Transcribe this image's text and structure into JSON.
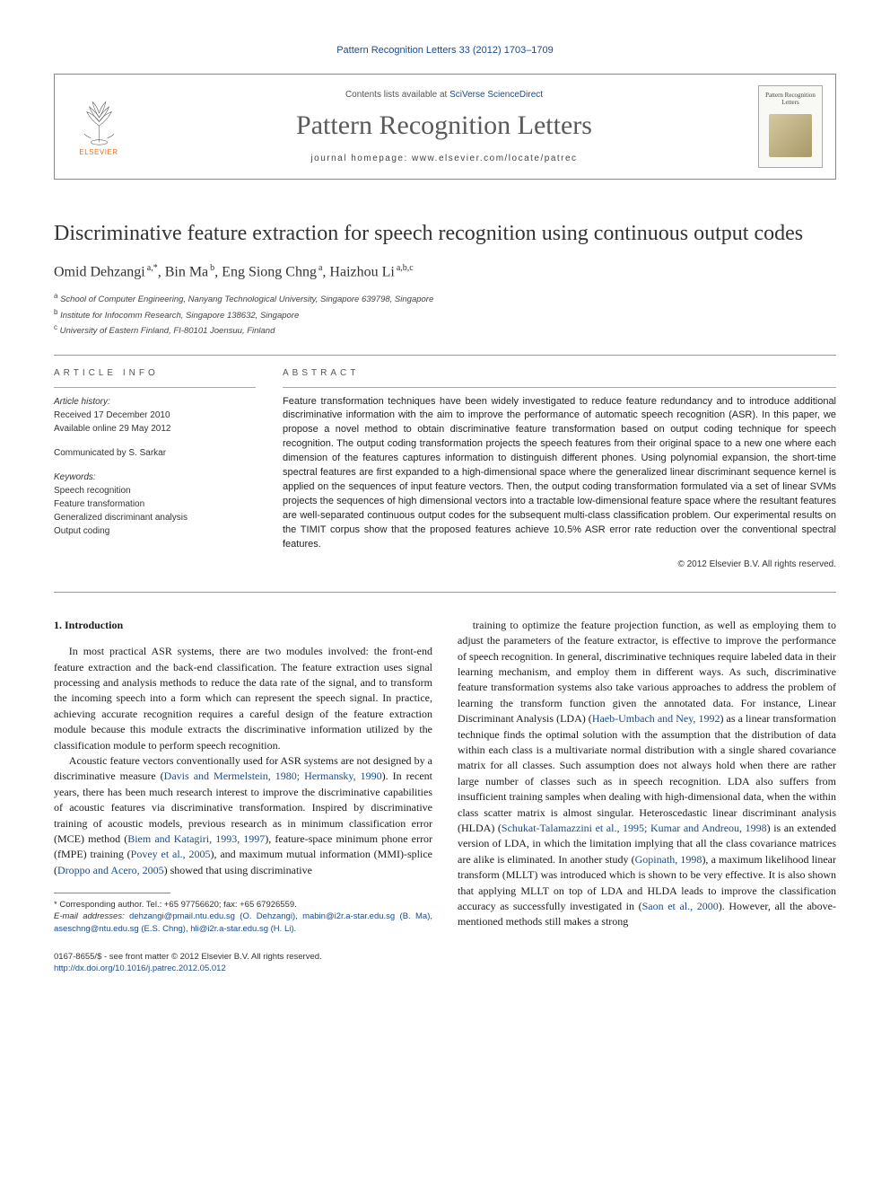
{
  "top_link": "Pattern Recognition Letters 33 (2012) 1703–1709",
  "header": {
    "elsevier_label": "ELSEVIER",
    "contents_prefix": "Contents lists available at ",
    "contents_link": "SciVerse ScienceDirect",
    "journal_name": "Pattern Recognition Letters",
    "homepage": "journal homepage: www.elsevier.com/locate/patrec",
    "cover_title": "Pattern Recognition Letters"
  },
  "title": "Discriminative feature extraction for speech recognition using continuous output codes",
  "authors_html": "Omid Dehzangi",
  "author_list": [
    {
      "name": "Omid Dehzangi",
      "sup": "a,*"
    },
    {
      "name": "Bin Ma",
      "sup": "b"
    },
    {
      "name": "Eng Siong Chng",
      "sup": "a"
    },
    {
      "name": "Haizhou Li",
      "sup": "a,b,c"
    }
  ],
  "affiliations": [
    {
      "sup": "a",
      "text": "School of Computer Engineering, Nanyang Technological University, Singapore 639798, Singapore"
    },
    {
      "sup": "b",
      "text": "Institute for Infocomm Research, Singapore 138632, Singapore"
    },
    {
      "sup": "c",
      "text": "University of Eastern Finland, FI-80101 Joensuu, Finland"
    }
  ],
  "info": {
    "heading": "ARTICLE INFO",
    "history_label": "Article history:",
    "received": "Received 17 December 2010",
    "available": "Available online 29 May 2012",
    "communicated": "Communicated by S. Sarkar",
    "keywords_label": "Keywords:",
    "keywords": [
      "Speech recognition",
      "Feature transformation",
      "Generalized discriminant analysis",
      "Output coding"
    ]
  },
  "abstract": {
    "heading": "ABSTRACT",
    "text": "Feature transformation techniques have been widely investigated to reduce feature redundancy and to introduce additional discriminative information with the aim to improve the performance of automatic speech recognition (ASR). In this paper, we propose a novel method to obtain discriminative feature transformation based on output coding technique for speech recognition. The output coding transformation projects the speech features from their original space to a new one where each dimension of the features captures information to distinguish different phones. Using polynomial expansion, the short-time spectral features are first expanded to a high-dimensional space where the generalized linear discriminant sequence kernel is applied on the sequences of input feature vectors. Then, the output coding transformation formulated via a set of linear SVMs projects the sequences of high dimensional vectors into a tractable low-dimensional feature space where the resultant features are well-separated continuous output codes for the subsequent multi-class classification problem. Our experimental results on the TIMIT corpus show that the proposed features achieve 10.5% ASR error rate reduction over the conventional spectral features.",
    "copyright": "© 2012 Elsevier B.V. All rights reserved."
  },
  "body": {
    "section_heading": "1. Introduction",
    "left_paragraphs": [
      "In most practical ASR systems, there are two modules involved: the front-end feature extraction and the back-end classification. The feature extraction uses signal processing and analysis methods to reduce the data rate of the signal, and to transform the incoming speech into a form which can represent the speech signal. In practice, achieving accurate recognition requires a careful design of the feature extraction module because this module extracts the discriminative information utilized by the classification module to perform speech recognition.",
      "Acoustic feature vectors conventionally used for ASR systems are not designed by a discriminative measure (<span class=\"cite\">Davis and Mermelstein, 1980; Hermansky, 1990</span>). In recent years, there has been much research interest to improve the discriminative capabilities of acoustic features via discriminative transformation. Inspired by discriminative training of acoustic models, previous research as in minimum classification error (MCE) method (<span class=\"cite\">Biem and Katagiri, 1993, 1997</span>), feature-space minimum phone error (fMPE) training (<span class=\"cite\">Povey et al., 2005</span>), and maximum mutual information (MMI)-splice (<span class=\"cite\">Droppo and Acero, 2005</span>) showed that using discriminative"
    ],
    "right_paragraphs": [
      "training to optimize the feature projection function, as well as employing them to adjust the parameters of the feature extractor, is effective to improve the performance of speech recognition. In general, discriminative techniques require labeled data in their learning mechanism, and employ them in different ways. As such, discriminative feature transformation systems also take various approaches to address the problem of learning the transform function given the annotated data. For instance, Linear Discriminant Analysis (LDA) (<span class=\"cite\">Haeb-Umbach and Ney, 1992</span>) as a linear transformation technique finds the optimal solution with the assumption that the distribution of data within each class is a multivariate normal distribution with a single shared covariance matrix for all classes. Such assumption does not always hold when there are rather large number of classes such as in speech recognition. LDA also suffers from insufficient training samples when dealing with high-dimensional data, when the within class scatter matrix is almost singular. Heteroscedastic linear discriminant analysis (HLDA) (<span class=\"cite\">Schukat-Talamazzini et al., 1995; Kumar and Andreou, 1998</span>) is an extended version of LDA, in which the limitation implying that all the class covariance matrices are alike is eliminated. In another study (<span class=\"cite\">Gopinath, 1998</span>), a maximum likelihood linear transform (MLLT) was introduced which is shown to be very effective. It is also shown that applying MLLT on top of LDA and HLDA leads to improve the classification accuracy as successfully investigated in (<span class=\"cite\">Saon et al., 2000</span>). However, all the above-mentioned methods still makes a strong"
    ]
  },
  "footnotes": {
    "corresponding": "* Corresponding author. Tel.: +65 97756620; fax: +65 67926559.",
    "emails_label": "E-mail addresses:",
    "emails": "dehzangi@pmail.ntu.edu.sg (O. Dehzangi), mabin@i2r.a-star.edu.sg (B. Ma), aseschng@ntu.edu.sg (E.S. Chng), hli@i2r.a-star.edu.sg (H. Li)."
  },
  "bottom": {
    "issn": "0167-8655/$ - see front matter © 2012 Elsevier B.V. All rights reserved.",
    "doi": "http://dx.doi.org/10.1016/j.patrec.2012.05.012"
  },
  "colors": {
    "link": "#1a4b8c",
    "elsevier_orange": "#e8711c",
    "text": "#1a1a1a",
    "gray": "#555555",
    "border": "#999999"
  }
}
